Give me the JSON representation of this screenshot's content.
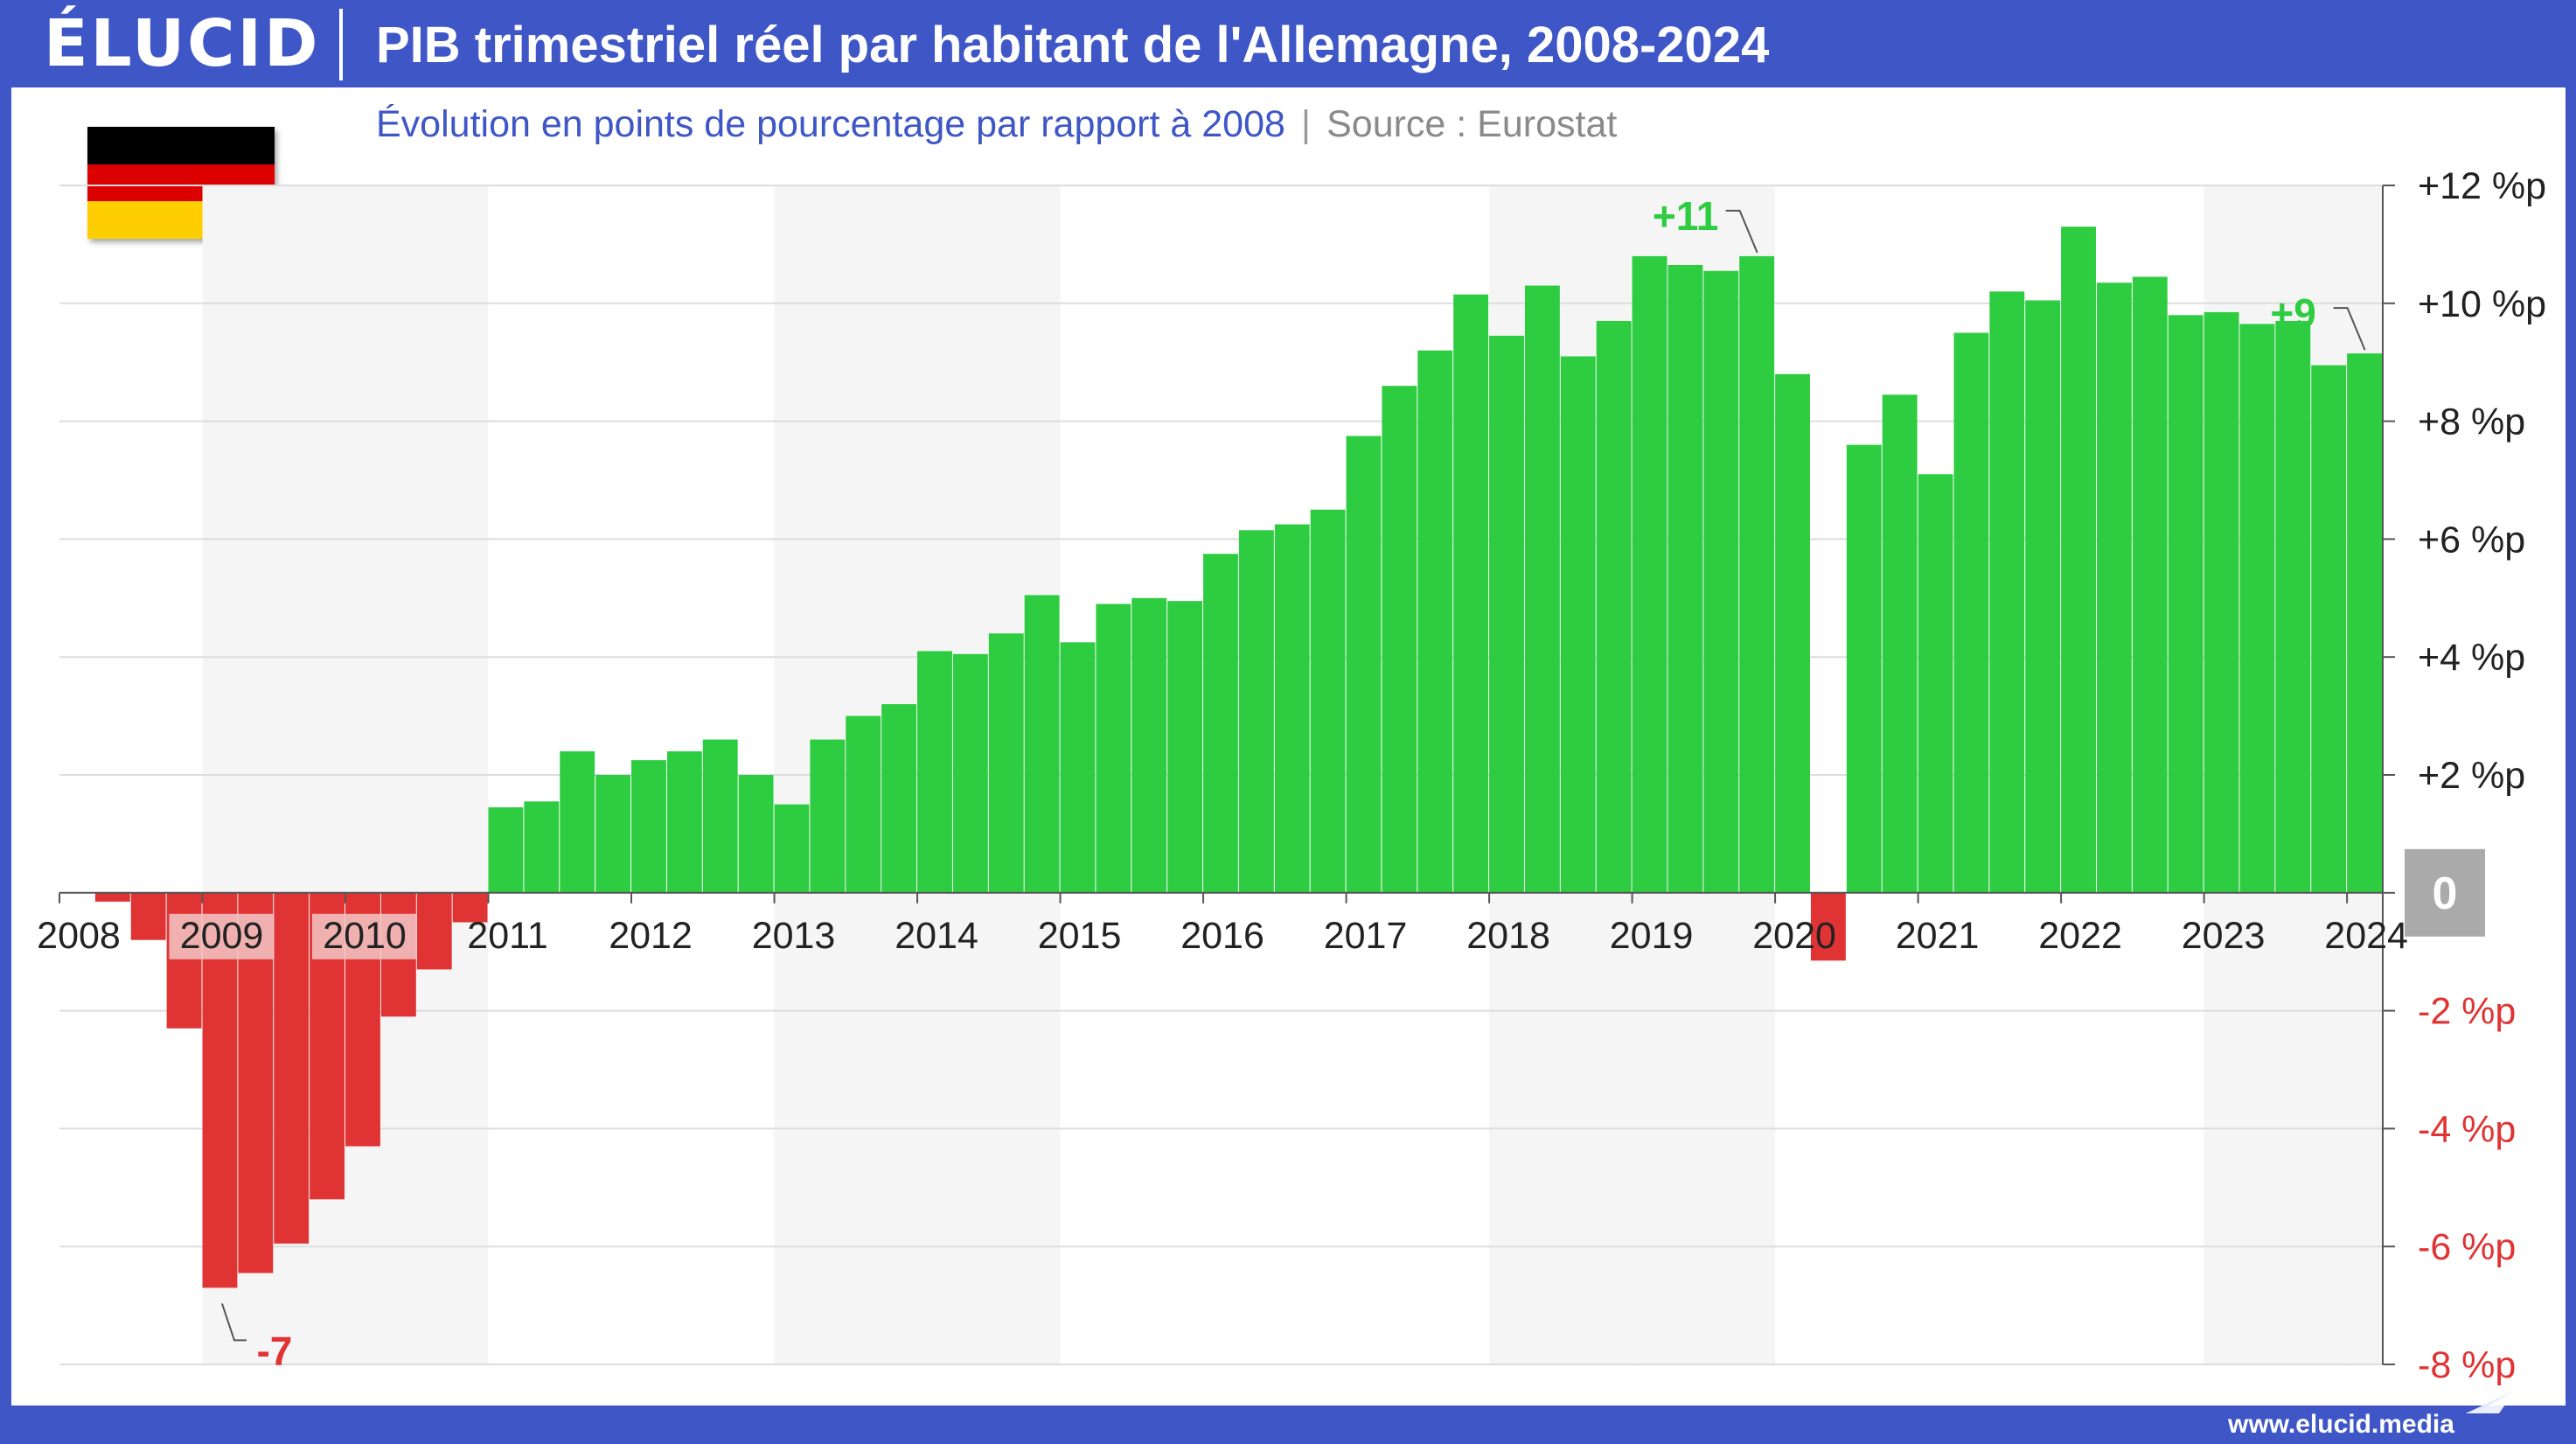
{
  "header": {
    "logo": "ÉLUCID",
    "title": "PIB trimestriel réel par habitant de l'Allemagne, 2008-2024"
  },
  "subtitle": {
    "main": "Évolution en points de pourcentage par rapport à 2008",
    "separator": "|",
    "source": "Source : Eurostat"
  },
  "footer": {
    "url": "www.elucid.media"
  },
  "flag": {
    "colors": [
      "#000000",
      "#dd0000",
      "#ffce00"
    ]
  },
  "colors": {
    "positive": "#2ecc40",
    "negative": "#e03434",
    "shade": "#f5f5f5",
    "grid": "#dddddd",
    "positive_label": "#2ecc40",
    "negative_label": "#e03434",
    "zero_badge": "#aaaaaa"
  },
  "chart_data": {
    "type": "bar",
    "title": "PIB trimestriel réel par habitant de l'Allemagne, 2008-2024",
    "subtitle": "Évolution en points de pourcentage par rapport à 2008",
    "source": "Source : Eurostat",
    "x_start_year": 2008,
    "quarters_per_year": 4,
    "ylim": [
      -8,
      12
    ],
    "y_ticks": [
      12,
      10,
      8,
      6,
      4,
      2,
      0,
      -2,
      -4,
      -6,
      -8
    ],
    "y_tick_labels": [
      "+12 %p",
      "+10 %p",
      "+8 %p",
      "+6 %p",
      "+4 %p",
      "+2 %p",
      "0",
      "-2 %p",
      "-4 %p",
      "-6 %p",
      "-8 %p"
    ],
    "year_labels": [
      "2008",
      "2009",
      "2010",
      "2011",
      "2012",
      "2013",
      "2014",
      "2015",
      "2016",
      "2017",
      "2018",
      "2019",
      "2020",
      "2021",
      "2022",
      "2023",
      "2024"
    ],
    "shaded_years": [
      "2009",
      "2010",
      "2013",
      "2014",
      "2018",
      "2019",
      "2023",
      "2024"
    ],
    "values": [
      0.0,
      -0.15,
      -0.8,
      -2.3,
      -6.7,
      -6.45,
      -5.95,
      -5.2,
      -4.3,
      -2.1,
      -1.3,
      -0.5,
      1.45,
      1.55,
      2.4,
      2.0,
      2.25,
      2.4,
      2.6,
      2.0,
      1.5,
      2.6,
      3.0,
      3.2,
      4.1,
      4.05,
      4.4,
      5.05,
      4.25,
      4.9,
      5.0,
      4.95,
      5.75,
      6.15,
      6.25,
      6.5,
      7.75,
      8.6,
      9.2,
      10.15,
      9.45,
      10.3,
      9.1,
      9.7,
      10.8,
      10.65,
      10.55,
      10.8,
      8.8,
      -1.15,
      7.6,
      8.45,
      7.1,
      9.5,
      10.2,
      10.05,
      11.3,
      10.35,
      10.45,
      9.8,
      9.85,
      9.65,
      9.7,
      8.95,
      9.15
    ],
    "annotations": [
      {
        "label": "-7",
        "value": -6.7,
        "type": "negative"
      },
      {
        "label": "+11",
        "value": 10.8,
        "type": "positive"
      },
      {
        "label": "+9",
        "value": 9.15,
        "type": "positive"
      }
    ],
    "grid": true,
    "legend": "none"
  }
}
